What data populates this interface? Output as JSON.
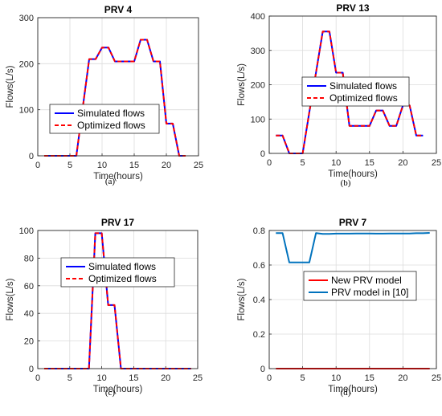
{
  "chart_data": [
    {
      "type": "line",
      "title": "PRV 4",
      "xlabel": "Time(hours)",
      "ylabel": "Flows(L/s)",
      "caption": "(a)",
      "xlim": [
        0,
        25
      ],
      "ylim": [
        0,
        300
      ],
      "xticks": [
        "0",
        "5",
        "10",
        "15",
        "20",
        "25"
      ],
      "yticks": [
        "0",
        "100",
        "200",
        "300"
      ],
      "x": [
        1,
        2,
        3,
        4,
        5,
        6,
        7,
        8,
        9,
        10,
        11,
        12,
        13,
        14,
        15,
        16,
        17,
        18,
        19,
        20,
        21,
        22,
        23,
        24
      ],
      "series": [
        {
          "name": "Simulated flows",
          "color": "#0000ff",
          "style": "solid",
          "values": [
            0,
            0,
            0,
            0,
            0,
            0,
            105,
            210,
            210,
            235,
            235,
            205,
            205,
            205,
            205,
            252,
            252,
            205,
            205,
            70,
            70,
            0,
            0,
            null
          ]
        },
        {
          "name": "Optimized flows",
          "color": "#ff0000",
          "style": "dashed",
          "values": [
            0,
            0,
            0,
            0,
            0,
            0,
            105,
            210,
            210,
            235,
            235,
            205,
            205,
            205,
            205,
            252,
            252,
            205,
            205,
            70,
            70,
            0,
            0,
            null
          ]
        }
      ],
      "legend": "center-left"
    },
    {
      "type": "line",
      "title": "PRV 13",
      "xlabel": "Time(hours)",
      "ylabel": "Flows(L/s)",
      "caption": "(b)",
      "xlim": [
        0,
        25
      ],
      "ylim": [
        0,
        400
      ],
      "xticks": [
        "0",
        "5",
        "10",
        "15",
        "20",
        "25"
      ],
      "yticks": [
        "0",
        "100",
        "200",
        "300",
        "400"
      ],
      "x": [
        1,
        2,
        3,
        4,
        5,
        6,
        7,
        8,
        9,
        10,
        11,
        12,
        13,
        14,
        15,
        16,
        17,
        18,
        19,
        20,
        21,
        22,
        23,
        24
      ],
      "series": [
        {
          "name": "Simulated flows",
          "color": "#0000ff",
          "style": "solid",
          "values": [
            52,
            52,
            0,
            0,
            0,
            120,
            235,
            355,
            355,
            235,
            235,
            80,
            80,
            80,
            80,
            125,
            125,
            80,
            80,
            140,
            140,
            52,
            52,
            null
          ]
        },
        {
          "name": "Optimized flows",
          "color": "#ff0000",
          "style": "dashed",
          "values": [
            52,
            52,
            0,
            0,
            0,
            120,
            235,
            355,
            355,
            235,
            235,
            80,
            80,
            80,
            80,
            125,
            125,
            80,
            80,
            140,
            140,
            52,
            52,
            null
          ]
        }
      ],
      "legend": "center-left"
    },
    {
      "type": "line",
      "title": "PRV 17",
      "xlabel": "Time(hours)",
      "ylabel": "Flows(L/s)",
      "caption": "(c)",
      "xlim": [
        0,
        25
      ],
      "ylim": [
        0,
        100
      ],
      "xticks": [
        "0",
        "5",
        "10",
        "15",
        "20",
        "25"
      ],
      "yticks": [
        "0",
        "20",
        "40",
        "60",
        "80",
        "100"
      ],
      "x": [
        1,
        2,
        3,
        4,
        5,
        6,
        7,
        8,
        9,
        10,
        11,
        12,
        13,
        14,
        15,
        16,
        17,
        18,
        19,
        20,
        21,
        22,
        23,
        24
      ],
      "series": [
        {
          "name": "Simulated flows",
          "color": "#0000ff",
          "style": "solid",
          "values": [
            0,
            0,
            0,
            0,
            0,
            0,
            0,
            0,
            98,
            98,
            46,
            46,
            0,
            0,
            0,
            0,
            0,
            0,
            0,
            0,
            0,
            0,
            0,
            0
          ]
        },
        {
          "name": "Optimized flows",
          "color": "#ff0000",
          "style": "dashed",
          "values": [
            0,
            0,
            0,
            0,
            0,
            0,
            0,
            0,
            98,
            98,
            46,
            46,
            0,
            0,
            0,
            0,
            0,
            0,
            0,
            0,
            0,
            0,
            0,
            0
          ]
        }
      ],
      "legend": "top-right"
    },
    {
      "type": "line",
      "title": "PRV 7",
      "xlabel": "Time(hours)",
      "ylabel": "Flows(L/s)",
      "caption": "(d)",
      "xlim": [
        0,
        25
      ],
      "ylim": [
        0,
        0.8
      ],
      "xticks": [
        "0",
        "5",
        "10",
        "15",
        "20",
        "25"
      ],
      "yticks": [
        "0",
        "0.2",
        "0.4",
        "0.6",
        "0.8"
      ],
      "x": [
        1,
        2,
        3,
        4,
        5,
        6,
        7,
        8,
        9,
        10,
        11,
        12,
        13,
        14,
        15,
        16,
        17,
        18,
        19,
        20,
        21,
        22,
        23,
        24
      ],
      "series": [
        {
          "name": "New PRV model",
          "color": "#ff0000",
          "style": "solid",
          "values": [
            0,
            0,
            0,
            0,
            0,
            0,
            0,
            0,
            0,
            0,
            0,
            0,
            0,
            0,
            0,
            0,
            0,
            0,
            0,
            0,
            0,
            0,
            0,
            0
          ]
        },
        {
          "name": "PRV model in [10]",
          "color": "#0072bd",
          "style": "solid",
          "values": [
            0.785,
            0.785,
            0.615,
            0.615,
            0.615,
            0.615,
            0.785,
            0.78,
            0.78,
            0.782,
            0.782,
            0.782,
            0.783,
            0.783,
            0.783,
            0.782,
            0.782,
            0.783,
            0.783,
            0.783,
            0.783,
            0.784,
            0.784,
            0.786
          ]
        }
      ],
      "legend": "center"
    }
  ]
}
